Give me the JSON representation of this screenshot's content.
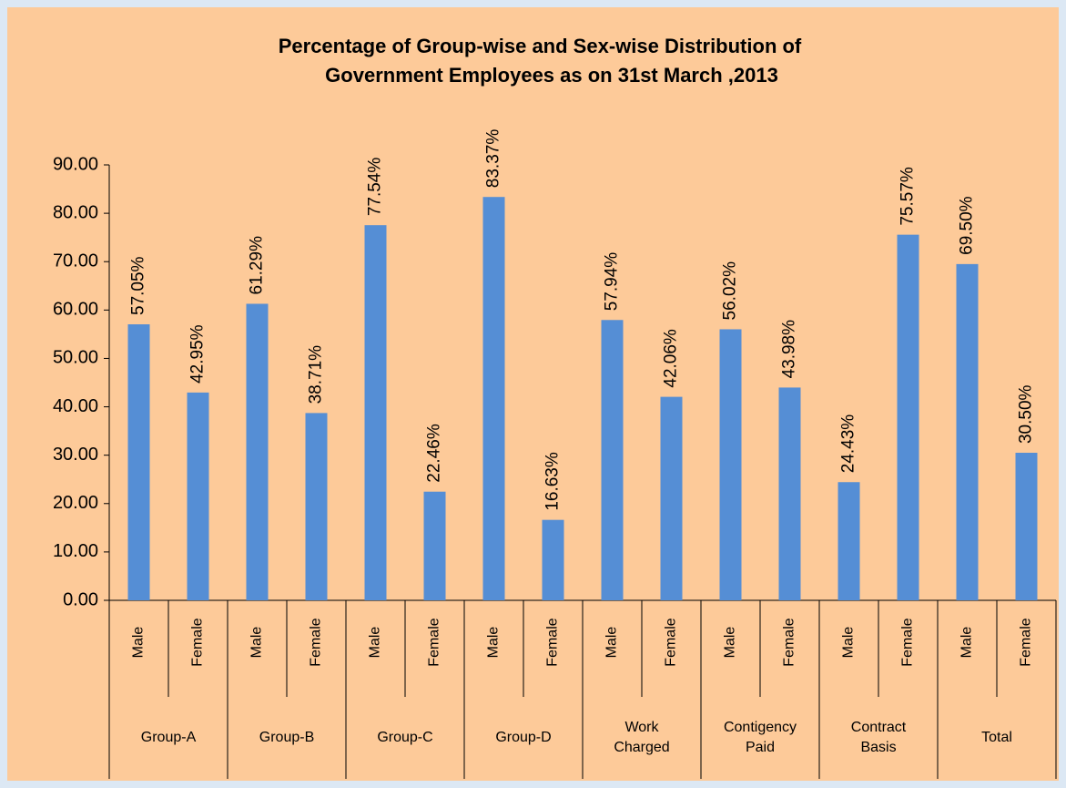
{
  "chart_data": {
    "type": "bar",
    "title": [
      "Percentage of Group-wise and Sex-wise Distribution of",
      "Government Employees  as on 31st March ,2013"
    ],
    "categories": [
      "Male",
      "Female",
      "Male",
      "Female",
      "Male",
      "Female",
      "Male",
      "Female",
      "Male",
      "Female",
      "Male",
      "Female",
      "Male",
      "Female",
      "Male",
      "Female"
    ],
    "groups": [
      "Group-A",
      "Group-B",
      "Group-C",
      "Group-D",
      "Work Charged",
      "Contigency Paid",
      "Contract Basis",
      "Total"
    ],
    "values": [
      57.05,
      42.95,
      61.29,
      38.71,
      77.54,
      22.46,
      83.37,
      16.63,
      57.94,
      42.06,
      56.02,
      43.98,
      24.43,
      75.57,
      69.5,
      30.5
    ],
    "value_labels": [
      "57.05%",
      "42.95%",
      "61.29%",
      "38.71%",
      "77.54%",
      "22.46%",
      "83.37%",
      "16.63%",
      "57.94%",
      "42.06%",
      "56.02%",
      "43.98%",
      "24.43%",
      "75.57%",
      "69.50%",
      "30.50%"
    ],
    "color": "#558ed5",
    "ylim": [
      0,
      90
    ],
    "yticks": [
      {
        "value": 0,
        "label": "0.00"
      },
      {
        "value": 10,
        "label": "10.00"
      },
      {
        "value": 20,
        "label": "20.00"
      },
      {
        "value": 30,
        "label": "30.00"
      },
      {
        "value": 40,
        "label": "40.00"
      },
      {
        "value": 50,
        "label": "50.00"
      },
      {
        "value": 60,
        "label": "60.00"
      },
      {
        "value": 70,
        "label": "70.00"
      },
      {
        "value": 80,
        "label": "80.00"
      },
      {
        "value": 90,
        "label": "90.00"
      }
    ],
    "grid": false
  }
}
